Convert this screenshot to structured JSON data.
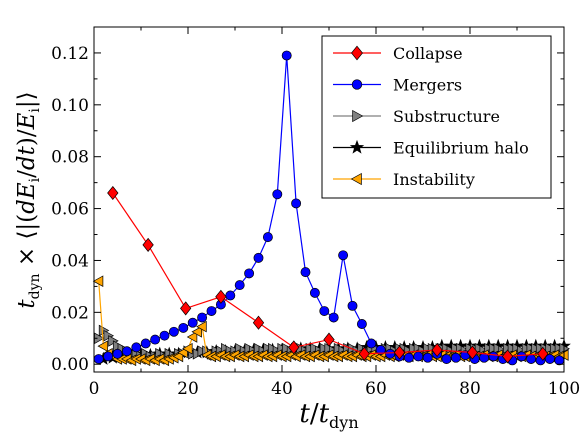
{
  "chart_data": {
    "type": "line",
    "xlabel": "t / t_dyn",
    "ylabel": "t_dyn × ⟨|(dE_i/dt)/E_i|⟩",
    "xlim": [
      0,
      100
    ],
    "ylim": [
      -0.003,
      0.13
    ],
    "xticks": [
      0,
      20,
      40,
      60,
      80,
      100
    ],
    "yticks": [
      0.0,
      0.02,
      0.04,
      0.06,
      0.08,
      0.1,
      0.12
    ],
    "xtick_labels": [
      "0",
      "20",
      "40",
      "60",
      "80",
      "100"
    ],
    "ytick_labels": [
      "0.00",
      "0.02",
      "0.04",
      "0.06",
      "0.08",
      "0.10",
      "0.12"
    ],
    "grid": false,
    "legend_position": "top-right",
    "series": [
      {
        "name": "Collapse",
        "color": "#ff0000",
        "marker": "diamond",
        "x": [
          4,
          11.5,
          19.5,
          27,
          35,
          42.5,
          50,
          57.5,
          65,
          73,
          80.5,
          88,
          95.5
        ],
        "y": [
          0.066,
          0.046,
          0.0215,
          0.026,
          0.016,
          0.0065,
          0.0095,
          0.004,
          0.0045,
          0.0055,
          0.0045,
          0.003,
          0.004
        ]
      },
      {
        "name": "Mergers",
        "color": "#0000ff",
        "marker": "circle",
        "x": [
          1,
          3,
          5,
          7,
          9,
          11,
          13,
          15,
          17,
          19,
          21,
          23,
          25,
          27,
          29,
          31,
          33,
          35,
          37,
          39,
          41,
          43,
          45,
          47,
          49,
          51,
          53,
          55,
          57,
          59,
          61,
          63,
          65,
          67,
          69,
          71,
          73,
          75,
          77,
          79,
          81,
          83,
          85,
          87,
          89,
          91,
          93,
          95,
          97,
          99
        ],
        "y": [
          0.002,
          0.003,
          0.004,
          0.005,
          0.0065,
          0.008,
          0.0095,
          0.011,
          0.0125,
          0.014,
          0.016,
          0.018,
          0.0205,
          0.023,
          0.0265,
          0.0305,
          0.035,
          0.041,
          0.049,
          0.0655,
          0.119,
          0.062,
          0.0355,
          0.0275,
          0.0205,
          0.018,
          0.042,
          0.0225,
          0.0155,
          0.008,
          0.0055,
          0.004,
          0.003,
          0.0025,
          0.003,
          0.0025,
          0.004,
          0.002,
          0.0025,
          0.0035,
          0.002,
          0.0025,
          0.003,
          0.002,
          0.0015,
          0.003,
          0.002,
          0.0015,
          0.002,
          0.0015
        ]
      },
      {
        "name": "Substructure",
        "color": "#808080",
        "marker": "triangle-right",
        "x": [
          1,
          2,
          3,
          4,
          5,
          6,
          7,
          8,
          9,
          10,
          11,
          12,
          13,
          14,
          15,
          16,
          17,
          18,
          19,
          20,
          21,
          22,
          23,
          24,
          25,
          26,
          27,
          28,
          29,
          30,
          31,
          32,
          33,
          34,
          35,
          36,
          37,
          38,
          39,
          40,
          41,
          42,
          43,
          44,
          45,
          46,
          47,
          48,
          49,
          50,
          51,
          52,
          53,
          54,
          55,
          56,
          57,
          58,
          59,
          60,
          61,
          62,
          63,
          64,
          65,
          66,
          67,
          68,
          69,
          70,
          71,
          72,
          73,
          74,
          75,
          76,
          77,
          78,
          79,
          80,
          81,
          82,
          83,
          84,
          85,
          86,
          87,
          88,
          89,
          90,
          91,
          92,
          93,
          94,
          95,
          96,
          97,
          98,
          99,
          100
        ],
        "y": [
          0.01,
          0.013,
          0.011,
          0.009,
          0.007,
          0.006,
          0.005,
          0.004,
          0.004,
          0.003,
          0.004,
          0.003,
          0.003,
          0.004,
          0.003,
          0.004,
          0.003,
          0.004,
          0.004,
          0.005,
          0.004,
          0.004,
          0.005,
          0.005,
          0.004,
          0.005,
          0.005,
          0.006,
          0.005,
          0.005,
          0.006,
          0.005,
          0.006,
          0.005,
          0.006,
          0.005,
          0.006,
          0.006,
          0.005,
          0.006,
          0.006,
          0.005,
          0.006,
          0.006,
          0.005,
          0.006,
          0.006,
          0.005,
          0.006,
          0.006,
          0.005,
          0.006,
          0.005,
          0.006,
          0.006,
          0.005,
          0.006,
          0.005,
          0.006,
          0.006,
          0.005,
          0.006,
          0.006,
          0.005,
          0.006,
          0.006,
          0.005,
          0.006,
          0.006,
          0.005,
          0.006,
          0.006,
          0.005,
          0.006,
          0.006,
          0.005,
          0.006,
          0.006,
          0.005,
          0.006,
          0.006,
          0.006,
          0.005,
          0.006,
          0.006,
          0.006,
          0.005,
          0.006,
          0.006,
          0.006,
          0.005,
          0.006,
          0.006,
          0.006,
          0.006,
          0.006,
          0.006,
          0.006,
          0.006,
          0.006
        ]
      },
      {
        "name": "Equilibrium halo",
        "color": "#000000",
        "marker": "star",
        "x": [
          2,
          4,
          6,
          8,
          10,
          12,
          14,
          16,
          18,
          20,
          22,
          24,
          26,
          28,
          30,
          32,
          34,
          36,
          38,
          40,
          42,
          44,
          46,
          48,
          50,
          52,
          54,
          56,
          58,
          60,
          62,
          64,
          66,
          68,
          70,
          72,
          74,
          76,
          78,
          80,
          82,
          84,
          86,
          88,
          90,
          92,
          94,
          96,
          98,
          100
        ],
        "y": [
          0.002,
          0.0025,
          0.003,
          0.003,
          0.0035,
          0.0035,
          0.004,
          0.004,
          0.004,
          0.0045,
          0.0045,
          0.0045,
          0.005,
          0.005,
          0.005,
          0.005,
          0.0055,
          0.0055,
          0.0055,
          0.0055,
          0.0055,
          0.006,
          0.006,
          0.006,
          0.006,
          0.006,
          0.006,
          0.006,
          0.0065,
          0.0065,
          0.0065,
          0.0065,
          0.0065,
          0.0065,
          0.0065,
          0.0065,
          0.007,
          0.007,
          0.007,
          0.007,
          0.007,
          0.007,
          0.007,
          0.007,
          0.007,
          0.007,
          0.007,
          0.007,
          0.007,
          0.007
        ]
      },
      {
        "name": "Instability",
        "color": "#ffa500",
        "marker": "triangle-left",
        "x": [
          1,
          2,
          3,
          4,
          5,
          6,
          7,
          8,
          9,
          10,
          11,
          12,
          13,
          14,
          15,
          16,
          17,
          18,
          19,
          20,
          21,
          22,
          23,
          24,
          25,
          26,
          27,
          28,
          29,
          30,
          31,
          32,
          33,
          34,
          35,
          36,
          37,
          38,
          39,
          40,
          41,
          42,
          43,
          44,
          45,
          46,
          47,
          48,
          49,
          50,
          51,
          52,
          53,
          54,
          55,
          56,
          57,
          58,
          59,
          60,
          61,
          62,
          63,
          64,
          65,
          66,
          67,
          68,
          69,
          70,
          71,
          72,
          73,
          74,
          75,
          76,
          77,
          78,
          79,
          80,
          81,
          82,
          83,
          84,
          85,
          86,
          87,
          88,
          89,
          90,
          91,
          92,
          93,
          94,
          95,
          96,
          97,
          98,
          99,
          100
        ],
        "y": [
          0.032,
          0.007,
          0.004,
          0.003,
          0.002,
          0.002,
          0.002,
          0.0015,
          0.002,
          0.002,
          0.0015,
          0.002,
          0.0015,
          0.002,
          0.0015,
          0.002,
          0.0025,
          0.003,
          0.0045,
          0.006,
          0.0105,
          0.0125,
          0.0145,
          0.0035,
          0.003,
          0.003,
          0.0035,
          0.003,
          0.003,
          0.0035,
          0.003,
          0.003,
          0.0035,
          0.003,
          0.003,
          0.0035,
          0.003,
          0.003,
          0.0035,
          0.003,
          0.003,
          0.0035,
          0.003,
          0.0035,
          0.003,
          0.003,
          0.0035,
          0.003,
          0.003,
          0.0035,
          0.003,
          0.003,
          0.0035,
          0.003,
          0.003,
          0.0035,
          0.003,
          0.003,
          0.0035,
          0.003,
          0.003,
          0.0035,
          0.003,
          0.003,
          0.0035,
          0.003,
          0.003,
          0.0035,
          0.003,
          0.003,
          0.0035,
          0.003,
          0.003,
          0.0035,
          0.003,
          0.003,
          0.0035,
          0.003,
          0.003,
          0.0035,
          0.003,
          0.003,
          0.0035,
          0.003,
          0.003,
          0.0035,
          0.003,
          0.003,
          0.0035,
          0.003,
          0.003,
          0.0035,
          0.003,
          0.003,
          0.0035,
          0.003,
          0.003,
          0.0035,
          0.003,
          0.0035
        ]
      }
    ]
  }
}
